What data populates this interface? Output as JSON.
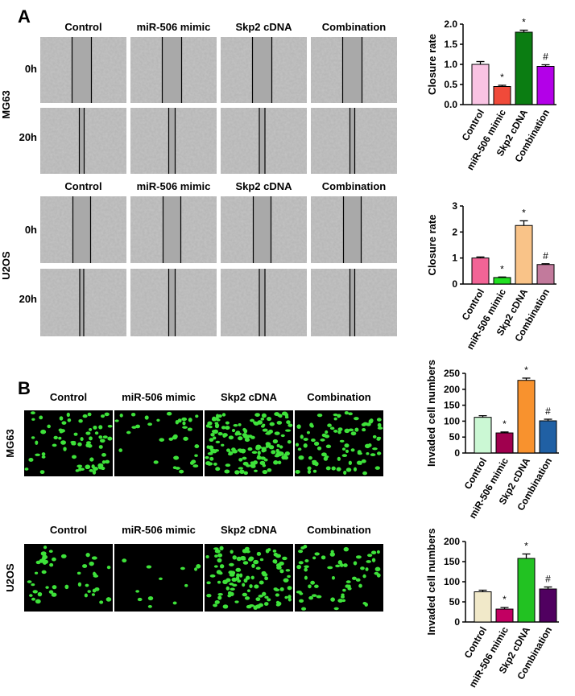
{
  "panel_labels": [
    "A",
    "B"
  ],
  "image_blocks": [
    {
      "cell_line": "MG63",
      "columns": [
        "Control",
        "miR-506 mimic",
        "Skp2 cDNA",
        "Combination"
      ],
      "rows": [
        "0h",
        "20h"
      ]
    },
    {
      "cell_line": "U2OS",
      "columns": [
        "Control",
        "miR-506 mimic",
        "Skp2 cDNA",
        "Combination"
      ],
      "rows": [
        "0h",
        "20h"
      ]
    },
    {
      "cell_line": "MG63",
      "columns": [
        "Control",
        "miR-506 mimic",
        "Skp2 cDNA",
        "Combination"
      ]
    },
    {
      "cell_line": "U2OS",
      "columns": [
        "Control",
        "miR-506 mimic",
        "Skp2 cDNA",
        "Combination"
      ]
    }
  ],
  "chart_data": [
    {
      "type": "bar",
      "ylabel": "Closure rate",
      "categories": [
        "Control",
        "miR-506 mimic",
        "Skp2 cDNA",
        "Combination"
      ],
      "values": [
        1.0,
        0.45,
        1.8,
        0.95
      ],
      "errors": [
        0.07,
        0.03,
        0.05,
        0.04
      ],
      "annotations": [
        null,
        "*",
        "*",
        "#"
      ],
      "colors": [
        "#f9c3e3",
        "#f04a3a",
        "#0b7d12",
        "#b300e8"
      ],
      "ylim": [
        0,
        2
      ],
      "yticks": [
        {
          "value": 0,
          "label": "0.0"
        },
        0.5,
        {
          "value": 1,
          "label": "1.0"
        },
        1.5,
        {
          "value": 2,
          "label": "2.0"
        }
      ]
    },
    {
      "type": "bar",
      "ylabel": "Closure rate",
      "categories": [
        "Control",
        "miR-506 mimic",
        "Skp2 cDNA",
        "Combination"
      ],
      "values": [
        1.0,
        0.25,
        2.25,
        0.75
      ],
      "errors": [
        0.04,
        0.02,
        0.18,
        0.03
      ],
      "annotations": [
        null,
        "*",
        "*",
        "#"
      ],
      "colors": [
        "#f26496",
        "#22e022",
        "#f9c388",
        "#c27a9c"
      ],
      "ylim": [
        0,
        3
      ],
      "yticks": [
        0,
        1,
        2,
        3
      ]
    },
    {
      "type": "bar",
      "ylabel": "Invaded cell numbers",
      "categories": [
        "Control",
        "miR-506 mimic",
        "Skp2 cDNA",
        "Combination"
      ],
      "values": [
        112,
        63,
        228,
        101
      ],
      "errors": [
        5,
        3,
        7,
        5
      ],
      "annotations": [
        null,
        "*",
        "*",
        "#"
      ],
      "colors": [
        "#cbf8d4",
        "#a0004e",
        "#f8922e",
        "#2060a4"
      ],
      "ylim": [
        0,
        250
      ],
      "yticks": [
        0,
        50,
        100,
        150,
        200,
        250
      ]
    },
    {
      "type": "bar",
      "ylabel": "Invaded cell numbers",
      "categories": [
        "Control",
        "miR-506 mimic",
        "Skp2 cDNA",
        "Combination"
      ],
      "values": [
        75,
        32,
        158,
        82
      ],
      "errors": [
        4,
        4,
        11,
        5
      ],
      "annotations": [
        null,
        "*",
        "*",
        "#"
      ],
      "colors": [
        "#f1e9c9",
        "#c20062",
        "#22c222",
        "#500060"
      ],
      "ylim": [
        0,
        200
      ],
      "yticks": [
        0,
        50,
        100,
        150,
        200
      ]
    }
  ]
}
